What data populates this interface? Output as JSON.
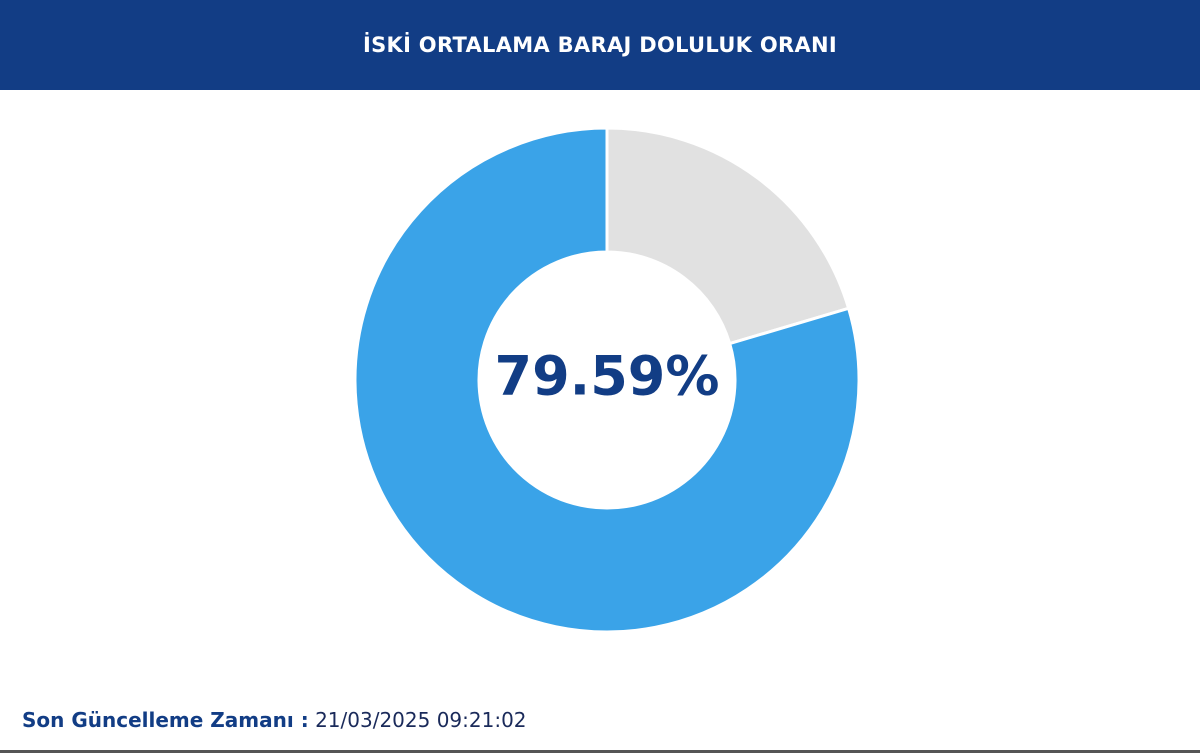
{
  "chart_data": {
    "type": "pie",
    "title": "İSKİ ORTALAMA BARAJ DOLULUK ORANI",
    "values": [
      79.59,
      20.41
    ],
    "value_labels": [
      "79.59%",
      null
    ],
    "colors": [
      "#3aa3e8",
      "#e1e1e1"
    ],
    "donut": true
  },
  "footer": {
    "label": "Son Güncelleme Zamanı :",
    "value": "21/03/2025 09:21:02"
  }
}
